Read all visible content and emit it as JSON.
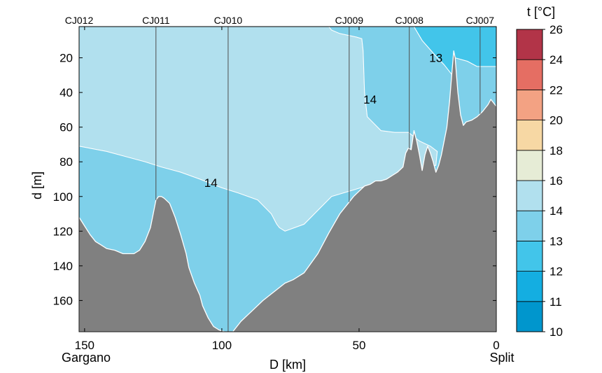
{
  "chart_data": {
    "type": "contour",
    "xlabel": "D [km]",
    "ylabel": "d [m]",
    "x_reversed": true,
    "y_reversed": true,
    "xlim": [
      152,
      0
    ],
    "ylim": [
      2,
      178
    ],
    "xticks": [
      150,
      100,
      50,
      0
    ],
    "yticks": [
      20,
      40,
      60,
      80,
      100,
      120,
      140,
      160
    ],
    "endpoints": {
      "left": "Gargano",
      "right": "Split"
    },
    "stations": [
      {
        "name": "CJ012",
        "x": 152
      },
      {
        "name": "CJ011",
        "x": 124
      },
      {
        "name": "CJ010",
        "x": 97.7
      },
      {
        "name": "CJ009",
        "x": 53.6
      },
      {
        "name": "CJ008",
        "x": 31.7
      },
      {
        "name": "CJ007",
        "x": 5.9
      }
    ],
    "colorbar": {
      "title": "t [°C]",
      "levels": [
        10,
        11,
        12,
        13,
        14,
        16,
        18,
        20,
        22,
        24,
        26
      ],
      "colors": [
        "#0096cd",
        "#14aee1",
        "#42c5ea",
        "#7ed0ea",
        "#b1e0ee",
        "#e6ecd6",
        "#f7d8a4",
        "#f3a283",
        "#e56e63",
        "#b23448"
      ]
    },
    "regions": [
      {
        "temperature_range": [
          14,
          16
        ],
        "color": "#b1e0ee",
        "boundary": [
          [
            152,
            2
          ],
          [
            61,
            2
          ],
          [
            60,
            4
          ],
          [
            57,
            6
          ],
          [
            54,
            7
          ],
          [
            51,
            8
          ],
          [
            49,
            9
          ],
          [
            48.5,
            16
          ],
          [
            48,
            40
          ],
          [
            47,
            54
          ],
          [
            42,
            62
          ],
          [
            37,
            63
          ],
          [
            32,
            63
          ],
          [
            28,
            68
          ],
          [
            24,
            71
          ],
          [
            21.5,
            74
          ],
          [
            22,
            82
          ],
          [
            60,
            100
          ],
          [
            70,
            116
          ],
          [
            77,
            120
          ],
          [
            79,
            118
          ],
          [
            80,
            116
          ],
          [
            82,
            110
          ],
          [
            87,
            102
          ],
          [
            94,
            98
          ],
          [
            100,
            95
          ],
          [
            108,
            90
          ],
          [
            115,
            86
          ],
          [
            122,
            83
          ],
          [
            128,
            80
          ],
          [
            135,
            77
          ],
          [
            142,
            74
          ],
          [
            152,
            71
          ]
        ]
      },
      {
        "temperature_range": [
          13,
          14
        ],
        "color": "#7ed0ea",
        "boundary": [
          [
            61,
            2
          ],
          [
            30,
            2
          ],
          [
            27,
            10
          ],
          [
            22,
            19
          ],
          [
            19,
            24
          ],
          [
            16,
            30
          ],
          [
            15,
            20
          ],
          [
            10.5,
            22
          ],
          [
            7,
            25
          ],
          [
            0,
            25
          ],
          [
            0,
            178
          ],
          [
            152,
            178
          ],
          [
            152,
            71
          ],
          [
            142,
            74
          ],
          [
            135,
            77
          ],
          [
            128,
            80
          ],
          [
            122,
            83
          ],
          [
            115,
            86
          ],
          [
            108,
            90
          ],
          [
            100,
            95
          ],
          [
            94,
            98
          ],
          [
            87,
            102
          ],
          [
            82,
            110
          ],
          [
            80,
            116
          ],
          [
            79,
            118
          ],
          [
            77,
            120
          ],
          [
            70,
            116
          ],
          [
            60,
            100
          ],
          [
            22,
            82
          ],
          [
            21.5,
            74
          ],
          [
            24,
            71
          ],
          [
            28,
            68
          ],
          [
            32,
            63
          ],
          [
            37,
            63
          ],
          [
            42,
            62
          ],
          [
            47,
            54
          ],
          [
            48,
            40
          ],
          [
            48.5,
            16
          ],
          [
            49,
            9
          ],
          [
            51,
            8
          ],
          [
            54,
            7
          ],
          [
            57,
            6
          ],
          [
            60,
            4
          ]
        ]
      },
      {
        "temperature_range": [
          12,
          13
        ],
        "color": "#42c5ea",
        "boundary": [
          [
            30,
            2
          ],
          [
            0,
            2
          ],
          [
            0,
            25
          ],
          [
            7,
            25
          ],
          [
            10.5,
            22
          ],
          [
            15,
            20
          ],
          [
            16,
            30
          ],
          [
            19,
            24
          ],
          [
            22,
            19
          ],
          [
            27,
            10
          ]
        ]
      }
    ],
    "contour_labels": [
      {
        "text": "14",
        "x": 46,
        "y": 44
      },
      {
        "text": "13",
        "x": 22,
        "y": 20
      },
      {
        "text": "14",
        "x": 104,
        "y": 92
      }
    ],
    "seabed": [
      [
        152,
        112
      ],
      [
        150,
        117
      ],
      [
        148,
        122
      ],
      [
        146,
        126
      ],
      [
        144,
        128
      ],
      [
        142,
        130
      ],
      [
        139,
        131
      ],
      [
        136,
        133
      ],
      [
        132,
        133
      ],
      [
        130,
        131
      ],
      [
        128,
        126
      ],
      [
        126,
        118
      ],
      [
        125,
        110
      ],
      [
        124,
        102
      ],
      [
        123,
        100
      ],
      [
        122,
        100
      ],
      [
        121,
        101
      ],
      [
        119,
        104
      ],
      [
        117,
        112
      ],
      [
        115,
        122
      ],
      [
        113,
        133
      ],
      [
        112,
        141
      ],
      [
        110,
        150
      ],
      [
        108,
        157
      ],
      [
        107,
        163
      ],
      [
        105,
        170
      ],
      [
        103,
        175
      ],
      [
        101,
        177
      ],
      [
        99,
        178
      ],
      [
        96,
        178
      ],
      [
        93,
        172
      ],
      [
        89,
        166
      ],
      [
        85,
        160
      ],
      [
        81,
        155
      ],
      [
        77,
        150
      ],
      [
        74,
        148
      ],
      [
        70,
        144
      ],
      [
        65,
        133
      ],
      [
        61,
        121
      ],
      [
        57,
        110
      ],
      [
        54,
        104
      ],
      [
        52,
        100
      ],
      [
        50,
        97
      ],
      [
        48,
        94
      ],
      [
        46,
        93
      ],
      [
        44,
        91
      ],
      [
        42,
        91
      ],
      [
        40,
        90
      ],
      [
        38,
        88
      ],
      [
        36,
        86
      ],
      [
        34,
        83
      ],
      [
        33,
        75
      ],
      [
        32,
        72
      ],
      [
        31,
        73
      ],
      [
        30,
        62
      ],
      [
        29,
        68
      ],
      [
        28,
        76
      ],
      [
        27,
        85
      ],
      [
        26,
        76
      ],
      [
        25,
        71
      ],
      [
        24,
        75
      ],
      [
        23,
        80
      ],
      [
        22,
        86
      ],
      [
        21,
        82
      ],
      [
        20,
        76
      ],
      [
        19,
        68
      ],
      [
        18,
        60
      ],
      [
        17,
        45
      ],
      [
        16,
        25
      ],
      [
        15.5,
        16
      ],
      [
        15,
        20
      ],
      [
        14,
        40
      ],
      [
        13,
        53
      ],
      [
        12,
        59
      ],
      [
        11,
        57
      ],
      [
        9,
        56
      ],
      [
        7,
        54
      ],
      [
        5,
        51
      ],
      [
        3,
        47
      ],
      [
        2,
        44
      ],
      [
        1,
        46
      ],
      [
        0,
        48
      ]
    ]
  }
}
